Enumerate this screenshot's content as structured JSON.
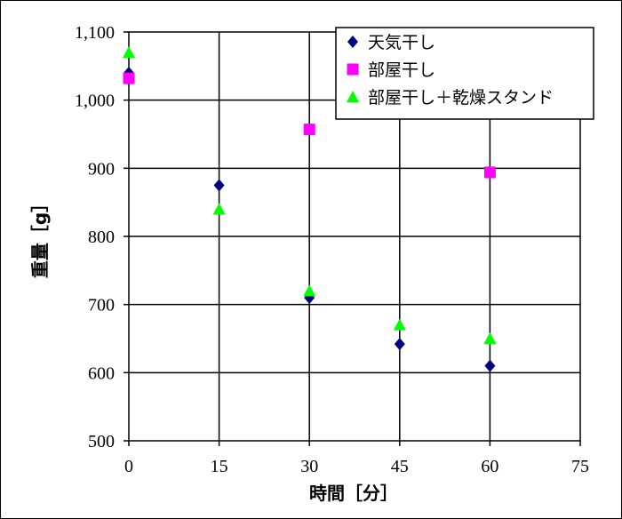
{
  "chart_data": {
    "type": "scatter",
    "xlabel": "時間［分］",
    "ylabel": "重量［g］",
    "xlim": [
      0,
      75
    ],
    "ylim": [
      500,
      1100
    ],
    "x_ticks": [
      0,
      15,
      30,
      45,
      60,
      75
    ],
    "y_ticks": [
      500,
      600,
      700,
      800,
      900,
      1000,
      1100
    ],
    "x_tick_labels": [
      "0",
      "15",
      "30",
      "45",
      "60",
      "75"
    ],
    "y_tick_labels": [
      "500",
      "600",
      "700",
      "800",
      "900",
      "1,000",
      "1,100"
    ],
    "grid": true,
    "legend_position": "top-right",
    "series": [
      {
        "name": "天気干し",
        "marker": "diamond",
        "color": "#000080",
        "x": [
          0,
          15,
          30,
          45,
          60
        ],
        "y": [
          1040,
          875,
          710,
          642,
          610
        ]
      },
      {
        "name": "部屋干し",
        "marker": "square",
        "color": "#ff00ff",
        "x": [
          0,
          30,
          60
        ],
        "y": [
          1032,
          957,
          894
        ]
      },
      {
        "name": "部屋干し＋乾燥スタンド",
        "marker": "triangle",
        "color": "#00ff00",
        "x": [
          0,
          15,
          30,
          45,
          60
        ],
        "y": [
          1070,
          840,
          720,
          670,
          650
        ]
      }
    ]
  }
}
